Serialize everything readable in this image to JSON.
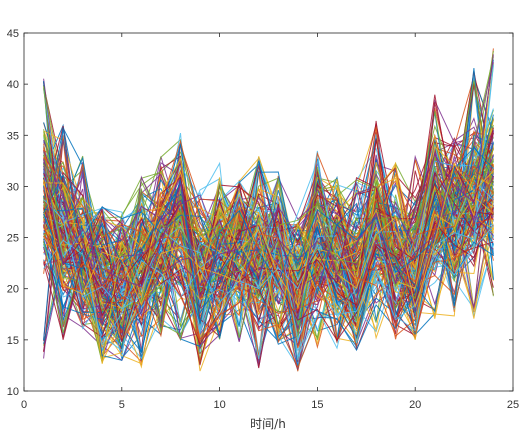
{
  "chart_data": {
    "type": "line",
    "xlabel": "时间/h",
    "ylabel": "",
    "title": "",
    "xlim": [
      0,
      25
    ],
    "ylim": [
      10,
      45
    ],
    "xticks": [
      0,
      5,
      10,
      15,
      20,
      25
    ],
    "yticks": [
      10,
      15,
      20,
      25,
      30,
      35,
      40,
      45
    ],
    "x": [
      1,
      2,
      3,
      4,
      5,
      6,
      7,
      8,
      9,
      10,
      11,
      12,
      13,
      14,
      15,
      16,
      17,
      18,
      19,
      20,
      21,
      22,
      23,
      24
    ],
    "grid": false,
    "legend": "none",
    "series_count": 200,
    "envelope_min": [
      13,
      15,
      16,
      12.5,
      13,
      12,
      15,
      15,
      11,
      15,
      14.5,
      12,
      14.5,
      11.5,
      14,
      13.5,
      14,
      15,
      15,
      15,
      17,
      17,
      16.5,
      19
    ],
    "envelope_max": [
      41,
      36,
      33,
      28,
      27.5,
      31,
      33,
      35.5,
      30,
      32.5,
      30.5,
      33,
      31.5,
      27.5,
      33.5,
      31,
      31,
      36.5,
      32.5,
      33.5,
      39,
      35,
      42,
      43.5
    ],
    "typical_profile": [
      29,
      25,
      23,
      21,
      20,
      22,
      24,
      26,
      21,
      23,
      24,
      23,
      23,
      20,
      24,
      23,
      21,
      26,
      23,
      22,
      28,
      27,
      29,
      30
    ],
    "colors": [
      "#0072BD",
      "#D95319",
      "#EDB120",
      "#7E2F8E",
      "#77AC30",
      "#4DBEEE",
      "#A2142F"
    ]
  }
}
